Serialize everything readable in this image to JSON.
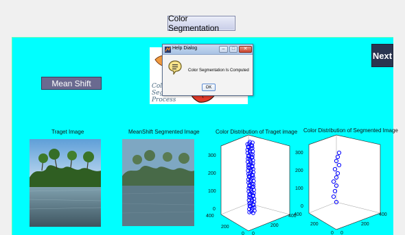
{
  "header": {
    "title_button": "Color Segmentation"
  },
  "controls": {
    "mean_shift_button": "Mean Shift",
    "next_button": "Next"
  },
  "artwork": {
    "line1": "Color",
    "line2": "Segmentation",
    "line3": "Process"
  },
  "plots": {
    "target_image_title": "Traget Image",
    "segmented_image_title": "MeanShift Segmented Image",
    "dist_target_title": "Color Distribution of Traget image",
    "dist_segmented_title": "Color Distribution of Segmented Image"
  },
  "dist_target_axes": {
    "z_ticks": [
      "300",
      "200",
      "100",
      "0"
    ],
    "left_ticks": [
      "400",
      "200",
      "0"
    ],
    "right_ticks": [
      "0",
      "200",
      "400"
    ]
  },
  "dist_segmented_axes": {
    "z_ticks": [
      "300",
      "200",
      "100",
      "0"
    ],
    "left_ticks": [
      "400",
      "200",
      "0"
    ],
    "right_ticks": [
      "0",
      "200",
      "400"
    ]
  },
  "dialog": {
    "title": "Help Dialog",
    "message": "Color Segmentation Is Computed",
    "ok_label": "OK",
    "minimize": "–",
    "maximize": "□",
    "close": "✕"
  },
  "colors": {
    "panel_bg": "#00ffff",
    "scatter": "#0000ff"
  },
  "icons": [
    "matlab-logo-icon",
    "info-speech-bubble-icon",
    "minimize-icon",
    "maximize-icon",
    "close-icon"
  ]
}
